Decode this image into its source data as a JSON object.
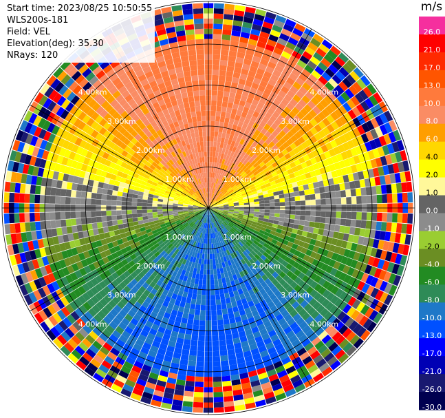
{
  "header": {
    "start_time": "Start time: 2023/08/25 10:50:55",
    "instrument": "WLS200s-181",
    "field": "Field: VEL",
    "elevation": "Elevation(deg): 35.30",
    "nrays": "NRays: 120"
  },
  "colorbar": {
    "title": "m/s",
    "ticks": [
      "26.0",
      "21.0",
      "17.0",
      "13.0",
      "10.0",
      "8.0",
      "6.0",
      "4.0",
      "2.0",
      "1.0",
      "0.0",
      "-1.0",
      "-2.0",
      "-4.0",
      "-6.0",
      "-8.0",
      "-10.0",
      "-13.0",
      "-17.0",
      "-21.0",
      "-26.0",
      "-30.0"
    ],
    "colors": [
      "#f52f9e",
      "#ff0000",
      "#ff2a00",
      "#ff5500",
      "#ff7a3c",
      "#fa8c64",
      "#ff9e00",
      "#ffd700",
      "#ffff00",
      "#fff89a",
      "#646464",
      "#8c8c8c",
      "#9acd32",
      "#6b8e23",
      "#228b22",
      "#2e8b57",
      "#1e78c8",
      "#0050ff",
      "#0000ff",
      "#0000b4",
      "#191970",
      "#000050"
    ]
  },
  "chart_data": {
    "type": "heatmap",
    "projection": "polar PPI",
    "field": "VEL",
    "units": "m/s",
    "n_rays": 120,
    "range_rings_km": [
      1.0,
      2.0,
      3.0,
      4.0
    ],
    "ring_labels": [
      "1.00km",
      "2.00km",
      "3.00km",
      "4.00km"
    ],
    "max_range_km": 5.0,
    "value_range": [
      -30.0,
      26.0
    ],
    "pattern": [
      {
        "sector": "north",
        "approx_velocity_ms": 8.0
      },
      {
        "sector": "north-east / north-west",
        "approx_velocity_ms": 4.0
      },
      {
        "sector": "east / west",
        "approx_velocity_ms": 0.0
      },
      {
        "sector": "south-east / south-west",
        "approx_velocity_ms": -4.0
      },
      {
        "sector": "south",
        "approx_velocity_ms": -10.0
      }
    ],
    "outer_noise_range_km": [
      4.1,
      5.0
    ]
  }
}
